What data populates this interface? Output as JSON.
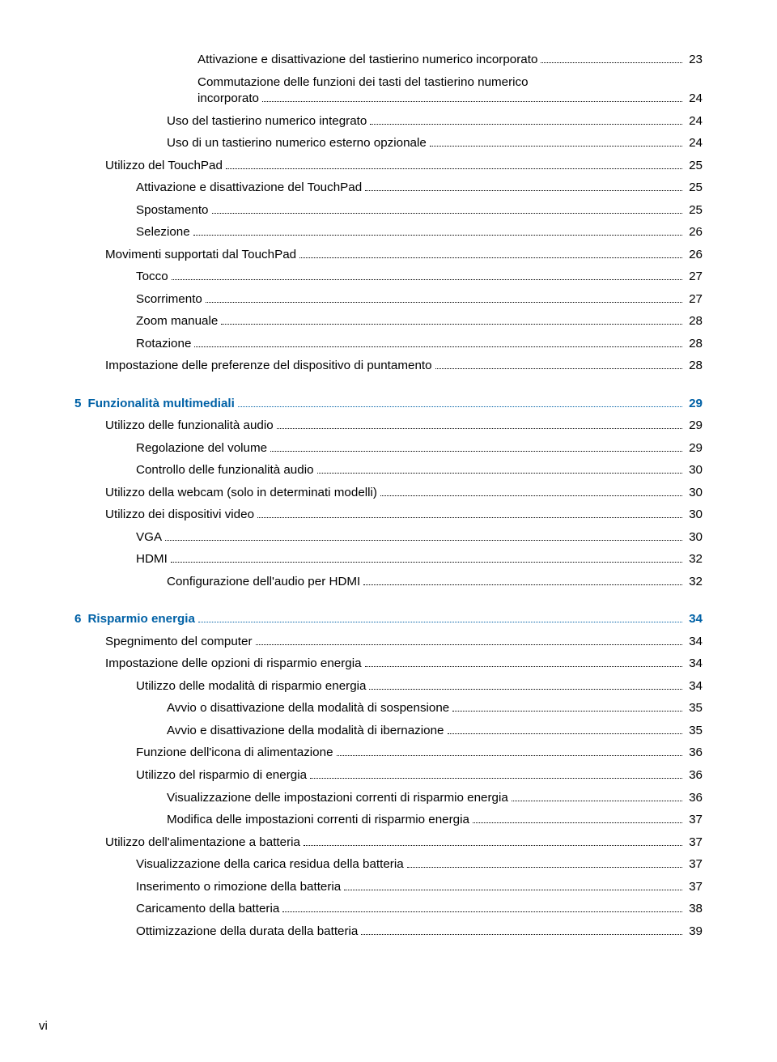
{
  "colors": {
    "heading": "#0061a6",
    "text": "#000000",
    "background": "#ffffff"
  },
  "typography": {
    "font_family": "Arial, Helvetica, sans-serif",
    "body_fontsize": 15.2,
    "heading_weight": "bold"
  },
  "page_footer": "vi",
  "entries": [
    {
      "indent": 4,
      "label": "Attivazione e disattivazione del tastierino numerico incorporato",
      "page": "23",
      "heading": false
    },
    {
      "indent": 4,
      "label": "Commutazione delle funzioni dei tasti del tastierino numerico\nincorporato",
      "page": "24",
      "heading": false
    },
    {
      "indent": 3,
      "label": "Uso del tastierino numerico integrato",
      "page": "24",
      "heading": false
    },
    {
      "indent": 3,
      "label": "Uso di un tastierino numerico esterno opzionale",
      "page": "24",
      "heading": false
    },
    {
      "indent": 1,
      "label": "Utilizzo del TouchPad",
      "page": "25",
      "heading": false
    },
    {
      "indent": 2,
      "label": "Attivazione e disattivazione del TouchPad",
      "page": "25",
      "heading": false
    },
    {
      "indent": 2,
      "label": "Spostamento",
      "page": "25",
      "heading": false
    },
    {
      "indent": 2,
      "label": "Selezione",
      "page": "26",
      "heading": false
    },
    {
      "indent": 1,
      "label": "Movimenti supportati dal TouchPad",
      "page": "26",
      "heading": false
    },
    {
      "indent": 2,
      "label": "Tocco",
      "page": "27",
      "heading": false
    },
    {
      "indent": 2,
      "label": "Scorrimento",
      "page": "27",
      "heading": false
    },
    {
      "indent": 2,
      "label": "Zoom manuale",
      "page": "28",
      "heading": false
    },
    {
      "indent": 2,
      "label": "Rotazione",
      "page": "28",
      "heading": false
    },
    {
      "indent": 1,
      "label": "Impostazione delle preferenze del dispositivo di puntamento",
      "page": "28",
      "heading": false
    },
    {
      "indent": 0,
      "chapnum": "5",
      "label": "Funzionalità multimediali",
      "page": "29",
      "heading": true
    },
    {
      "indent": 1,
      "label": "Utilizzo delle funzionalità audio",
      "page": "29",
      "heading": false
    },
    {
      "indent": 2,
      "label": "Regolazione del volume",
      "page": "29",
      "heading": false
    },
    {
      "indent": 2,
      "label": "Controllo delle funzionalità audio",
      "page": "30",
      "heading": false
    },
    {
      "indent": 1,
      "label": "Utilizzo della webcam (solo in determinati modelli)",
      "page": "30",
      "heading": false
    },
    {
      "indent": 1,
      "label": "Utilizzo dei dispositivi video",
      "page": "30",
      "heading": false
    },
    {
      "indent": 2,
      "label": "VGA",
      "page": "30",
      "heading": false
    },
    {
      "indent": 2,
      "label": "HDMI",
      "page": "32",
      "heading": false
    },
    {
      "indent": 3,
      "label": "Configurazione dell'audio per HDMI",
      "page": "32",
      "heading": false
    },
    {
      "indent": 0,
      "chapnum": "6",
      "label": "Risparmio energia",
      "page": "34",
      "heading": true
    },
    {
      "indent": 1,
      "label": "Spegnimento del computer",
      "page": "34",
      "heading": false
    },
    {
      "indent": 1,
      "label": "Impostazione delle opzioni di risparmio energia",
      "page": "34",
      "heading": false
    },
    {
      "indent": 2,
      "label": "Utilizzo delle modalità di risparmio energia",
      "page": "34",
      "heading": false
    },
    {
      "indent": 3,
      "label": "Avvio o disattivazione della modalità di sospensione",
      "page": "35",
      "heading": false
    },
    {
      "indent": 3,
      "label": "Avvio e disattivazione della modalità di ibernazione",
      "page": "35",
      "heading": false
    },
    {
      "indent": 2,
      "label": "Funzione dell'icona di alimentazione",
      "page": "36",
      "heading": false
    },
    {
      "indent": 2,
      "label": "Utilizzo del risparmio di energia",
      "page": "36",
      "heading": false
    },
    {
      "indent": 3,
      "label": "Visualizzazione delle impostazioni correnti di risparmio energia",
      "page": "36",
      "heading": false
    },
    {
      "indent": 3,
      "label": "Modifica delle impostazioni correnti di risparmio energia",
      "page": "37",
      "heading": false
    },
    {
      "indent": 1,
      "label": "Utilizzo dell'alimentazione a batteria",
      "page": "37",
      "heading": false
    },
    {
      "indent": 2,
      "label": "Visualizzazione della carica residua della batteria",
      "page": "37",
      "heading": false
    },
    {
      "indent": 2,
      "label": "Inserimento o rimozione della batteria",
      "page": "37",
      "heading": false
    },
    {
      "indent": 2,
      "label": "Caricamento della batteria",
      "page": "38",
      "heading": false
    },
    {
      "indent": 2,
      "label": "Ottimizzazione della durata della batteria",
      "page": "39",
      "heading": false
    }
  ]
}
